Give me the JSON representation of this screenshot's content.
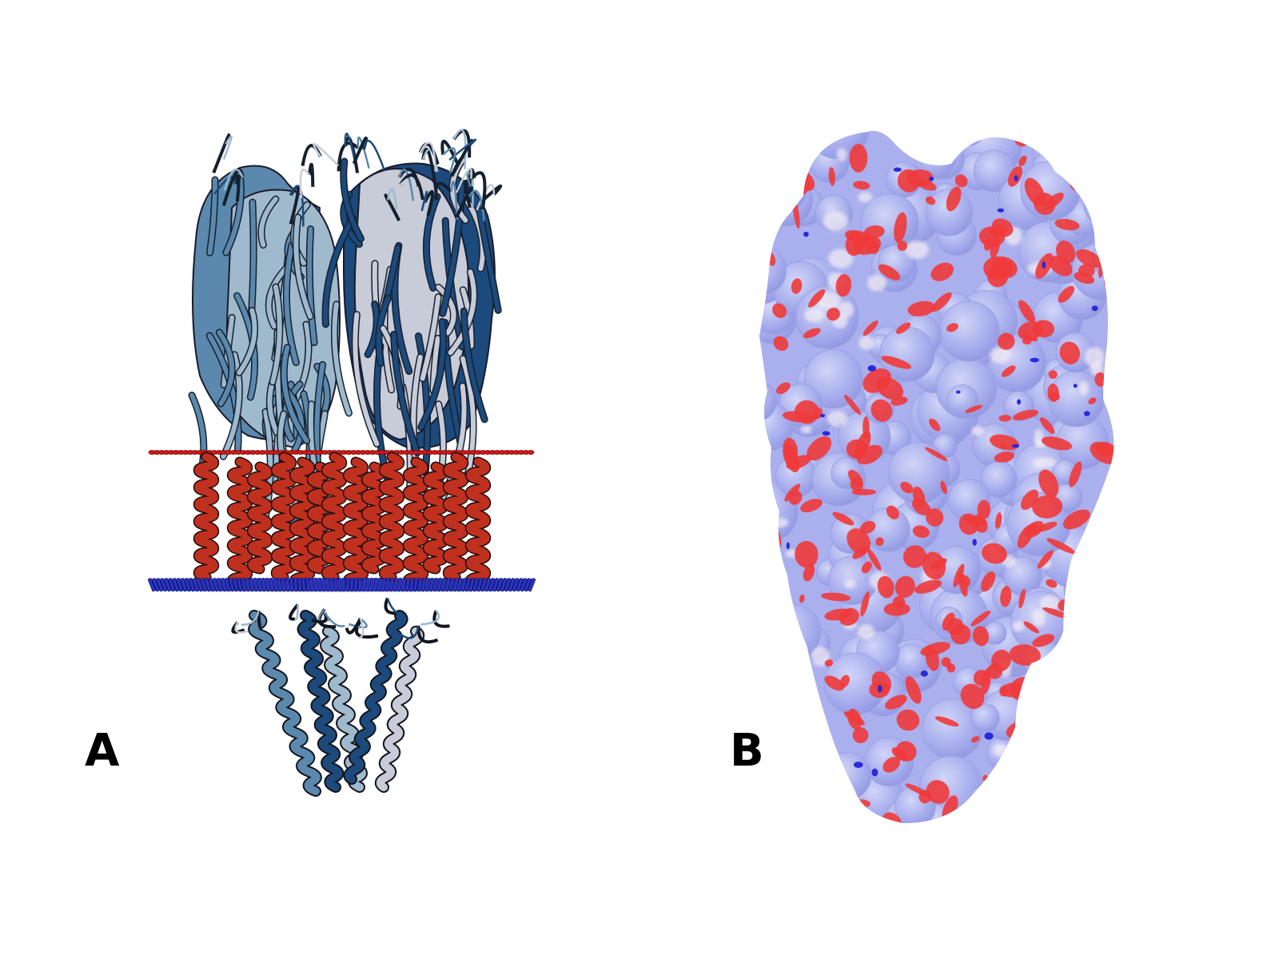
{
  "panels": [
    {
      "label": "A"
    },
    {
      "label": "B"
    }
  ],
  "colors": {
    "chain_dark_blue": "#1c4a7c",
    "chain_steel_blue": "#5b88ad",
    "chain_light_blue": "#9fb9cd",
    "chain_pale_grey": "#c8ccd8",
    "transmembrane_red": "#c0301f",
    "membrane_outer_red": "#d01818",
    "membrane_inner_blue": "#2a35c8",
    "surface_lavender": "#aab0ee",
    "surface_red_patch": "#f03a3a",
    "surface_blue_patch": "#2a2ad8",
    "surface_white": "#f4eef4"
  }
}
